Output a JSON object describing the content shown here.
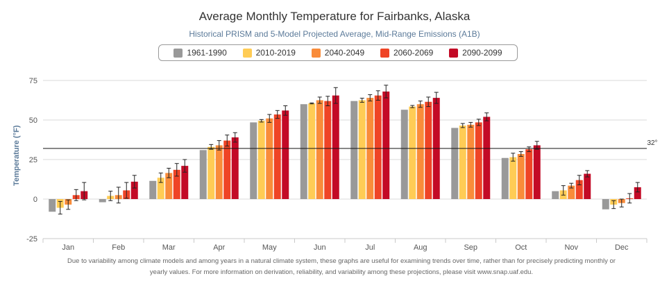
{
  "chart_data": {
    "type": "bar",
    "title": "Average Monthly Temperature for Fairbanks, Alaska",
    "subtitle": "Historical PRISM and 5-Model Projected Average, Mid-Range Emissions (A1B)",
    "ylabel": "Temperature (°F)",
    "xlabel": "",
    "ylim": [
      -25,
      80
    ],
    "yticks": [
      -25,
      0,
      25,
      50,
      75
    ],
    "grid": true,
    "legend_position": "top-center",
    "categories": [
      "Jan",
      "Feb",
      "Mar",
      "Apr",
      "May",
      "Jun",
      "Jul",
      "Aug",
      "Sep",
      "Oct",
      "Nov",
      "Dec"
    ],
    "reference_line": {
      "value": 32,
      "label": "32°"
    },
    "series": [
      {
        "name": "1961-1990",
        "color": "#999999",
        "values": [
          -8,
          -2,
          11.5,
          31,
          48.5,
          60,
          62,
          56.5,
          45,
          26,
          5,
          -6.5
        ],
        "errors": [
          0,
          0,
          0,
          0,
          0,
          0,
          0,
          0,
          0,
          0,
          0,
          0
        ]
      },
      {
        "name": "2010-2019",
        "color": "#ffcc55",
        "values": [
          -5.5,
          2,
          13.5,
          33,
          49.5,
          60.5,
          62.5,
          58.5,
          46.5,
          26.5,
          5.5,
          -3.5
        ],
        "errors": [
          4,
          3,
          3,
          1.5,
          0.8,
          0.3,
          1.3,
          0.7,
          1.3,
          2.5,
          3,
          2.5
        ]
      },
      {
        "name": "2040-2049",
        "color": "#f98c3a",
        "values": [
          -3.5,
          2.5,
          16.5,
          34,
          51,
          62.5,
          64,
          60,
          47,
          28.5,
          8.5,
          -2.5
        ],
        "errors": [
          3,
          5,
          3,
          3,
          2.5,
          2,
          2,
          2,
          1.5,
          1.5,
          1.5,
          2.5
        ]
      },
      {
        "name": "2060-2069",
        "color": "#ef4426",
        "values": [
          2.5,
          5.5,
          18.5,
          37,
          53.5,
          62,
          65.5,
          61.5,
          48.5,
          31.5,
          12,
          0.5
        ],
        "errors": [
          3.5,
          5,
          4,
          3.5,
          2.5,
          3,
          3,
          3,
          2,
          1.5,
          3,
          3
        ]
      },
      {
        "name": "2090-2099",
        "color": "#c30a26",
        "values": [
          5,
          11,
          21,
          39,
          56,
          65.5,
          68,
          64,
          52,
          34,
          16,
          7.5
        ],
        "errors": [
          5.5,
          4,
          4,
          3,
          3,
          5,
          4,
          3.5,
          2.5,
          2.5,
          2,
          3
        ]
      }
    ]
  },
  "footnote": {
    "line1": "Due to variability among climate models and among years in a natural climate system, these graphs are useful for examining trends over time, rather than for precisely predicting monthly or",
    "line2": "yearly values. For more information on derivation, reliability, and variability among these projections, please visit www.snap.uaf.edu."
  }
}
